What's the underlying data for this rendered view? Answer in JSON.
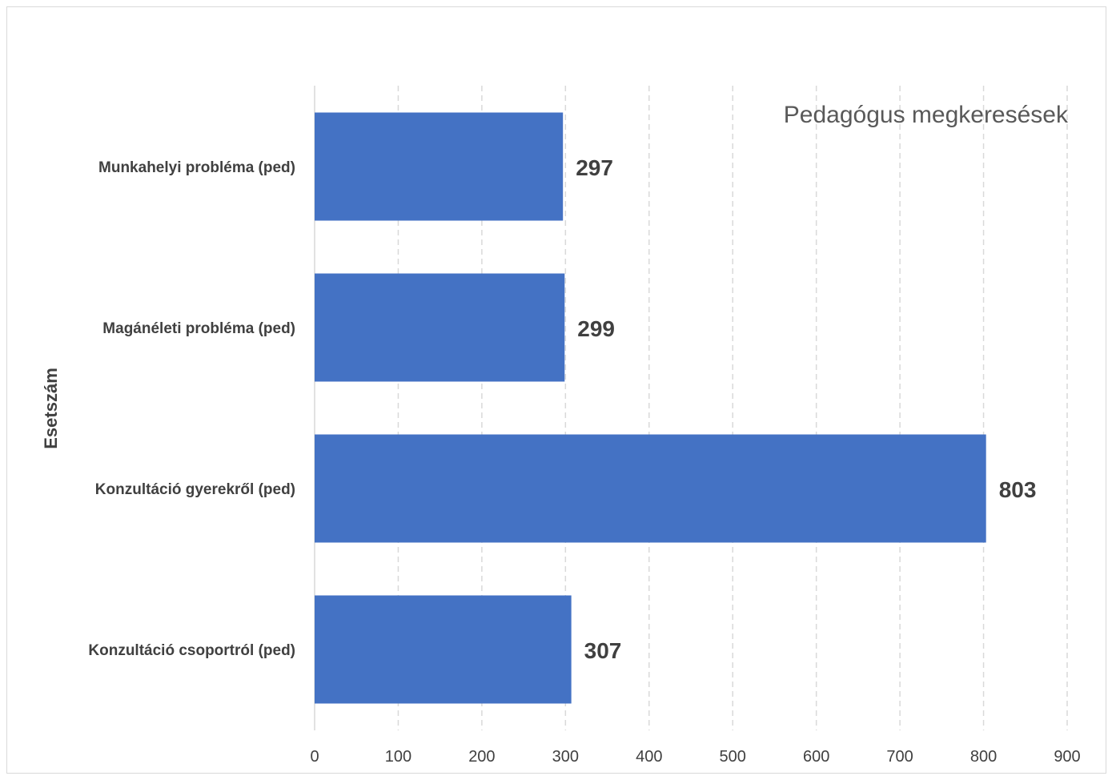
{
  "chart_data": {
    "type": "bar",
    "orientation": "horizontal",
    "title": "Pedagógus megkeresések",
    "ylabel": "Esetszám",
    "xlabel": "",
    "categories": [
      "Munkahelyi probléma (ped)",
      "Magánéleti probléma (ped)",
      "Konzultáció gyerekről (ped)",
      "Konzultáció csoportról (ped)"
    ],
    "values": [
      297,
      299,
      803,
      307
    ],
    "xlim": [
      0,
      900
    ],
    "xticks": [
      0,
      100,
      200,
      300,
      400,
      500,
      600,
      700,
      800,
      900
    ],
    "grid": "vertical dashed",
    "legend": "none",
    "data_labels": true
  },
  "colors": {
    "bar": "#4472c4",
    "grid": "#d9d9d9",
    "text": "#404040",
    "title": "#595959"
  }
}
